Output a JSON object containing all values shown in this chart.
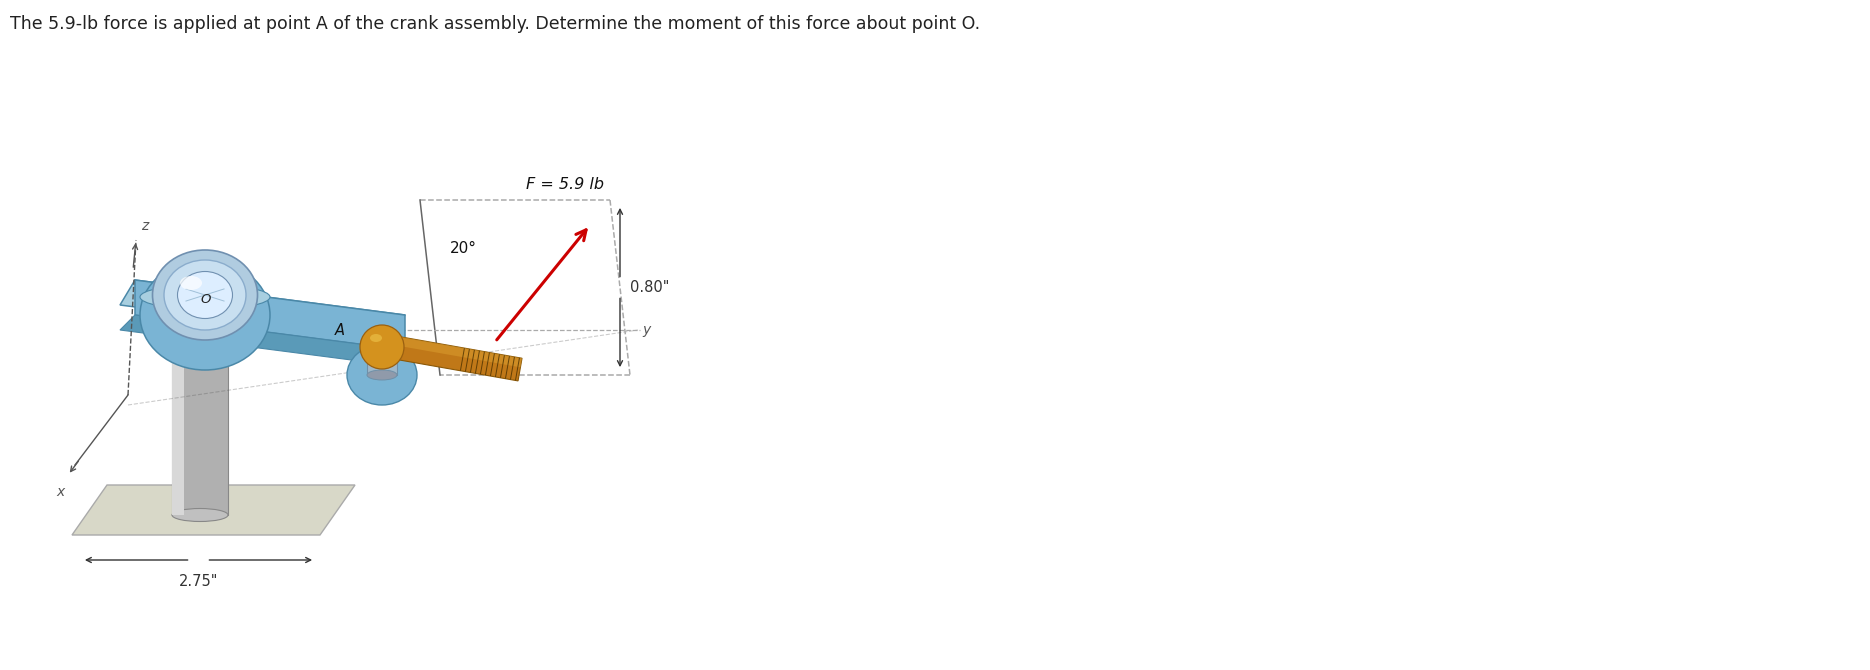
{
  "title": "The 5.9-lb force is applied at point A of the crank assembly. Determine the moment of this force about point O.",
  "title_fontsize": 12.5,
  "title_color": "#222222",
  "bg_color": "#ffffff",
  "force_label": "F = 5.9 lb",
  "angle_label": "20°",
  "dim1_label": "0.80\"",
  "dim2_label": "2.75\"",
  "axis_x_label": "x",
  "axis_y_label": "y",
  "axis_z_label": "z",
  "point_O_label": "O",
  "point_A_label": "A",
  "crank_top_color": "#a8cfe0",
  "crank_front_color": "#7ab4d4",
  "crank_side_color": "#90bdd6",
  "crank_bottom_color": "#5a9ab8",
  "crank_edge": "#4a88a8",
  "handle_ball_color": "#d4921e",
  "handle_ball_light": "#e8b840",
  "handle_rod_color": "#c07818",
  "handle_rod_dark": "#9a5e0a",
  "handle_pin_color": "#a0b8c8",
  "handle_pin_dark": "#7090a8",
  "bearing_outer_color": "#a8cce0",
  "bearing_mid_color": "#c8dff0",
  "bearing_inner_color": "#ddeeff",
  "bearing_edge": "#6090b0",
  "post_light": "#d8d8d8",
  "post_mid": "#b0b0b0",
  "post_dark": "#888888",
  "base_plate_color": "#d8d8c8",
  "base_plate_edge": "#aaaaaa",
  "force_arrow_color": "#cc0000",
  "dim_line_color": "#333333",
  "coord_line_color": "#555555",
  "dashed_line_color": "#999999",
  "dashed_rect_color": "#aaaaaa",
  "mid_dashed_color": "#aaaaaa"
}
